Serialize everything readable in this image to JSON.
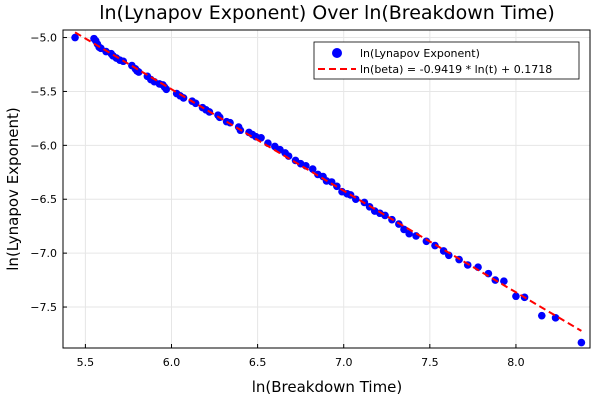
{
  "chart_data": {
    "type": "scatter",
    "title": "ln(Lynapov Exponent) Over ln(Breakdown Time)",
    "xlabel": "ln(Breakdown Time)",
    "ylabel": "ln(Lynapov Exponent)",
    "xlim": [
      5.37,
      8.43
    ],
    "ylim": [
      -7.88,
      -4.93
    ],
    "xticks": [
      5.5,
      6.0,
      6.5,
      7.0,
      7.5,
      8.0
    ],
    "xtick_labels": [
      "5.5",
      "6.0",
      "6.5",
      "7.0",
      "7.5",
      "8.0"
    ],
    "yticks": [
      -5.0,
      -5.5,
      -6.0,
      -6.5,
      -7.0,
      -7.5
    ],
    "ytick_labels": [
      "−5.0",
      "−5.5",
      "−6.0",
      "−6.5",
      "−7.0",
      "−7.5"
    ],
    "grid": true,
    "legend_position": "top-right",
    "series": [
      {
        "name": "ln(Lynapov Exponent)",
        "color": "#0000ff",
        "marker": "circle",
        "points": [
          [
            5.44,
            -5.0
          ],
          [
            5.55,
            -5.01
          ],
          [
            5.56,
            -5.03
          ],
          [
            5.57,
            -5.06
          ],
          [
            5.58,
            -5.09
          ],
          [
            5.59,
            -5.1
          ],
          [
            5.62,
            -5.13
          ],
          [
            5.65,
            -5.15
          ],
          [
            5.66,
            -5.17
          ],
          [
            5.68,
            -5.19
          ],
          [
            5.7,
            -5.21
          ],
          [
            5.72,
            -5.22
          ],
          [
            5.77,
            -5.26
          ],
          [
            5.79,
            -5.29
          ],
          [
            5.8,
            -5.31
          ],
          [
            5.81,
            -5.32
          ],
          [
            5.86,
            -5.36
          ],
          [
            5.88,
            -5.39
          ],
          [
            5.9,
            -5.41
          ],
          [
            5.93,
            -5.43
          ],
          [
            5.95,
            -5.44
          ],
          [
            5.96,
            -5.46
          ],
          [
            5.97,
            -5.48
          ],
          [
            6.03,
            -5.52
          ],
          [
            6.05,
            -5.54
          ],
          [
            6.07,
            -5.56
          ],
          [
            6.12,
            -5.59
          ],
          [
            6.14,
            -5.61
          ],
          [
            6.18,
            -5.65
          ],
          [
            6.2,
            -5.67
          ],
          [
            6.22,
            -5.69
          ],
          [
            6.27,
            -5.72
          ],
          [
            6.28,
            -5.74
          ],
          [
            6.32,
            -5.78
          ],
          [
            6.34,
            -5.79
          ],
          [
            6.39,
            -5.83
          ],
          [
            6.4,
            -5.86
          ],
          [
            6.45,
            -5.88
          ],
          [
            6.47,
            -5.9
          ],
          [
            6.49,
            -5.92
          ],
          [
            6.52,
            -5.93
          ],
          [
            6.56,
            -5.98
          ],
          [
            6.6,
            -6.01
          ],
          [
            6.63,
            -6.04
          ],
          [
            6.66,
            -6.07
          ],
          [
            6.68,
            -6.1
          ],
          [
            6.72,
            -6.14
          ],
          [
            6.75,
            -6.17
          ],
          [
            6.78,
            -6.19
          ],
          [
            6.82,
            -6.22
          ],
          [
            6.85,
            -6.27
          ],
          [
            6.88,
            -6.29
          ],
          [
            6.9,
            -6.33
          ],
          [
            6.93,
            -6.34
          ],
          [
            6.96,
            -6.38
          ],
          [
            6.99,
            -6.43
          ],
          [
            7.02,
            -6.45
          ],
          [
            7.04,
            -6.46
          ],
          [
            7.07,
            -6.5
          ],
          [
            7.12,
            -6.53
          ],
          [
            7.15,
            -6.57
          ],
          [
            7.18,
            -6.61
          ],
          [
            7.21,
            -6.63
          ],
          [
            7.24,
            -6.65
          ],
          [
            7.28,
            -6.69
          ],
          [
            7.32,
            -6.73
          ],
          [
            7.35,
            -6.78
          ],
          [
            7.38,
            -6.82
          ],
          [
            7.42,
            -6.84
          ],
          [
            7.48,
            -6.89
          ],
          [
            7.53,
            -6.93
          ],
          [
            7.58,
            -6.98
          ],
          [
            7.61,
            -7.02
          ],
          [
            7.67,
            -7.06
          ],
          [
            7.72,
            -7.11
          ],
          [
            7.78,
            -7.13
          ],
          [
            7.84,
            -7.19
          ],
          [
            7.88,
            -7.25
          ],
          [
            7.93,
            -7.26
          ],
          [
            8.0,
            -7.4
          ],
          [
            8.05,
            -7.41
          ],
          [
            8.15,
            -7.58
          ],
          [
            8.23,
            -7.6
          ],
          [
            8.38,
            -7.83
          ]
        ]
      },
      {
        "name": "ln(beta) = -0.9419 * ln(t) + 0.1718",
        "color": "#ff0000",
        "style": "dashed-line",
        "slope": -0.9419,
        "intercept": 0.1718,
        "x_range": [
          5.44,
          8.38
        ]
      }
    ]
  }
}
